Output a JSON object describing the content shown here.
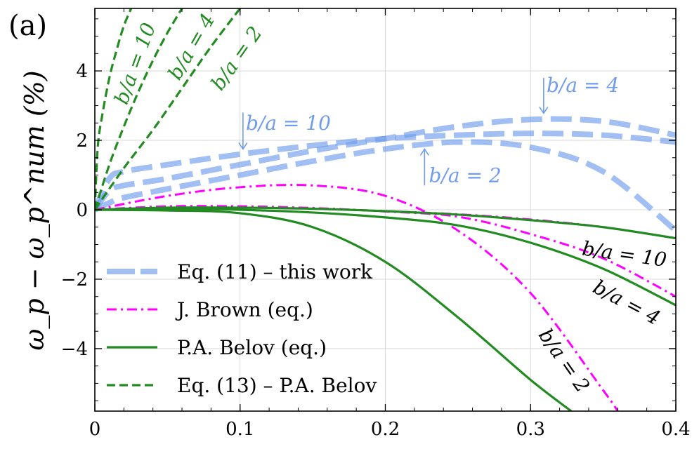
{
  "chart_data": {
    "type": "line",
    "panel_label": "(a)",
    "title": "",
    "xlabel": "",
    "ylabel": "ω_p − ω_p^num (%)",
    "xlim": [
      0,
      0.4
    ],
    "ylim": [
      -5.8,
      5.8
    ],
    "x_ticks": [
      0,
      0.1,
      0.2,
      0.3,
      0.4
    ],
    "x_tick_labels": [
      "0",
      "0.1",
      "0.2",
      "0.3",
      "0.4"
    ],
    "y_ticks": [
      -4,
      -2,
      0,
      2,
      4
    ],
    "y_tick_labels": [
      "−4",
      "−2",
      "0",
      "2",
      "4"
    ],
    "grid": true,
    "colors": {
      "this_work": "#6f9ceb",
      "brown": "#ff00ff",
      "belov": "#228b22",
      "eq13": "#228b22"
    },
    "legend": {
      "placement": "lower-left",
      "entries": [
        {
          "key": "this_work",
          "label": "Eq. (11) – this work",
          "style": "dashed-thick"
        },
        {
          "key": "brown",
          "label": "J. Brown (eq.)",
          "style": "dashdot"
        },
        {
          "key": "belov",
          "label": "P.A. Belov (eq.)",
          "style": "solid"
        },
        {
          "key": "eq13",
          "label": "Eq. (13) – P.A. Belov",
          "style": "dashed"
        }
      ]
    },
    "series": [
      {
        "name": "Eq. (11) – this work, b/a = 10",
        "family": "this_work",
        "x": [
          0,
          0.01,
          0.02,
          0.05,
          0.1,
          0.15,
          0.2,
          0.25,
          0.3,
          0.35,
          0.4
        ],
        "y": [
          0,
          0.9,
          1.1,
          1.3,
          1.6,
          1.85,
          2.05,
          2.15,
          2.2,
          2.15,
          1.95
        ]
      },
      {
        "name": "Eq. (11) – this work, b/a = 4",
        "family": "this_work",
        "x": [
          0,
          0.01,
          0.02,
          0.05,
          0.1,
          0.15,
          0.2,
          0.25,
          0.3,
          0.35,
          0.4
        ],
        "y": [
          0,
          0.55,
          0.7,
          0.9,
          1.3,
          1.7,
          2.05,
          2.4,
          2.6,
          2.55,
          2.15
        ]
      },
      {
        "name": "Eq. (11) – this work, b/a = 2",
        "family": "this_work",
        "x": [
          0,
          0.01,
          0.02,
          0.05,
          0.1,
          0.15,
          0.2,
          0.25,
          0.3,
          0.35,
          0.4
        ],
        "y": [
          0,
          0.2,
          0.35,
          0.6,
          1.0,
          1.4,
          1.75,
          1.95,
          1.8,
          1.1,
          -0.6
        ]
      },
      {
        "name": "J. Brown (eq.), b/a = 10",
        "family": "brown",
        "x": [
          0,
          0.05,
          0.1,
          0.15,
          0.2,
          0.25,
          0.3,
          0.35,
          0.4
        ],
        "y": [
          0,
          0.06,
          0.07,
          0.04,
          -0.04,
          -0.13,
          -0.28,
          -0.5,
          -0.82
        ]
      },
      {
        "name": "J. Brown (eq.), b/a = 4",
        "family": "brown",
        "x": [
          0,
          0.05,
          0.1,
          0.15,
          0.2,
          0.25,
          0.3,
          0.35,
          0.4
        ],
        "y": [
          0,
          0.1,
          0.1,
          0.05,
          -0.05,
          -0.2,
          -0.7,
          -1.4,
          -2.5
        ]
      },
      {
        "name": "J. Brown (eq.), b/a = 2",
        "family": "brown",
        "x": [
          0,
          0.05,
          0.1,
          0.15,
          0.2,
          0.25,
          0.3,
          0.35,
          0.36
        ],
        "y": [
          0,
          0.4,
          0.65,
          0.7,
          0.4,
          -0.6,
          -2.4,
          -5.2,
          -5.8
        ]
      },
      {
        "name": "P.A. Belov (eq.), b/a = 10",
        "family": "belov",
        "x": [
          0,
          0.05,
          0.1,
          0.15,
          0.2,
          0.25,
          0.3,
          0.35,
          0.4
        ],
        "y": [
          0,
          0.06,
          0.06,
          0.03,
          -0.04,
          -0.14,
          -0.3,
          -0.5,
          -0.82
        ]
      },
      {
        "name": "P.A. Belov (eq.), b/a = 4",
        "family": "belov",
        "x": [
          0,
          0.05,
          0.1,
          0.15,
          0.2,
          0.25,
          0.3,
          0.35,
          0.4
        ],
        "y": [
          0,
          0.03,
          0.0,
          -0.08,
          -0.22,
          -0.45,
          -0.95,
          -1.7,
          -2.75
        ]
      },
      {
        "name": "P.A. Belov (eq.), b/a = 2",
        "family": "belov",
        "x": [
          0,
          0.05,
          0.1,
          0.15,
          0.2,
          0.25,
          0.3,
          0.328
        ],
        "y": [
          0,
          -0.02,
          -0.1,
          -0.5,
          -1.5,
          -3.1,
          -4.9,
          -5.8
        ]
      },
      {
        "name": "Eq. (13) – P.A. Belov, b/a = 10",
        "family": "eq13",
        "x": [
          0,
          0.002,
          0.005,
          0.01,
          0.015,
          0.02,
          0.025
        ],
        "y": [
          0,
          1.8,
          2.7,
          3.8,
          4.6,
          5.3,
          5.8
        ]
      },
      {
        "name": "Eq. (13) – P.A. Belov, b/a = 4",
        "family": "eq13",
        "x": [
          0,
          0.01,
          0.02,
          0.03,
          0.04,
          0.05,
          0.06
        ],
        "y": [
          0,
          1.3,
          2.4,
          3.4,
          4.3,
          5.1,
          5.8
        ]
      },
      {
        "name": "Eq. (13) – P.A. Belov, b/a = 2",
        "family": "eq13",
        "x": [
          0,
          0.02,
          0.04,
          0.06,
          0.08,
          0.1
        ],
        "y": [
          0,
          1.2,
          2.3,
          3.5,
          4.7,
          5.8
        ]
      }
    ],
    "annotations": [
      {
        "text": "b/a = 10",
        "color": "#228b22",
        "anchor_data": [
          0.022,
          3.0
        ],
        "rotation_deg": -70
      },
      {
        "text": "b/a = 4",
        "color": "#228b22",
        "anchor_data": [
          0.058,
          3.7
        ],
        "rotation_deg": -60
      },
      {
        "text": "b/a = 2",
        "color": "#228b22",
        "anchor_data": [
          0.087,
          3.4
        ],
        "rotation_deg": -55
      },
      {
        "text": "b/a = 10",
        "color": "#6f9ceb",
        "anchor_data": [
          0.104,
          2.3
        ],
        "rotation_deg": 0
      },
      {
        "text": "b/a = 4",
        "color": "#6f9ceb",
        "anchor_data": [
          0.311,
          3.4
        ],
        "rotation_deg": 0
      },
      {
        "text": "b/a = 2",
        "color": "#6f9ceb",
        "anchor_data": [
          0.23,
          0.8
        ],
        "rotation_deg": 0
      },
      {
        "text": "b/a = 10",
        "color": "#000000",
        "anchor_data": [
          0.335,
          -1.3
        ],
        "rotation_deg": 8
      },
      {
        "text": "b/a = 4",
        "color": "#000000",
        "anchor_data": [
          0.342,
          -2.35
        ],
        "rotation_deg": 28
      },
      {
        "text": "b/a = 2",
        "color": "#000000",
        "anchor_data": [
          0.305,
          -3.6
        ],
        "rotation_deg": 55
      }
    ],
    "arrows": [
      {
        "color": "#6f9ceb",
        "from_data": [
          0.102,
          2.8
        ],
        "to_data": [
          0.102,
          1.75
        ]
      },
      {
        "color": "#6f9ceb",
        "from_data": [
          0.309,
          3.8
        ],
        "to_data": [
          0.309,
          2.78
        ]
      },
      {
        "color": "#6f9ceb",
        "from_data": [
          0.227,
          0.7
        ],
        "to_data": [
          0.227,
          1.75
        ]
      }
    ]
  }
}
